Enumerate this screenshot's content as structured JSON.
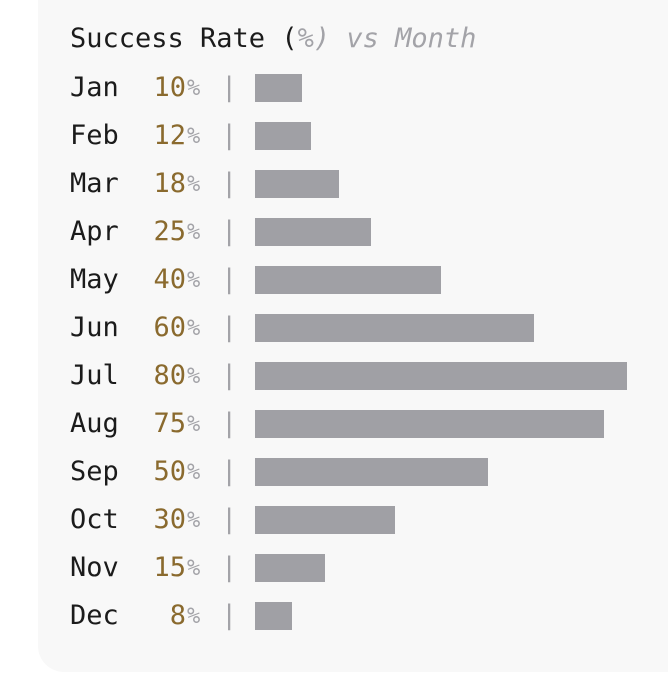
{
  "chart_data": {
    "type": "bar",
    "orientation": "horizontal",
    "title": {
      "main": "Success Rate (",
      "unit": "%",
      "rest": ") vs Month"
    },
    "unit": "%",
    "separator": "|",
    "categories": [
      "Jan",
      "Feb",
      "Mar",
      "Apr",
      "May",
      "Jun",
      "Jul",
      "Aug",
      "Sep",
      "Oct",
      "Nov",
      "Dec"
    ],
    "values": [
      10,
      12,
      18,
      25,
      40,
      60,
      80,
      75,
      50,
      30,
      15,
      8
    ],
    "xlim": [
      0,
      80
    ],
    "grid": false,
    "colors": {
      "bar": "#a0a0a5",
      "value": "#8a6a2e",
      "muted": "#a3a3a8",
      "text": "#1b1b1b"
    }
  }
}
